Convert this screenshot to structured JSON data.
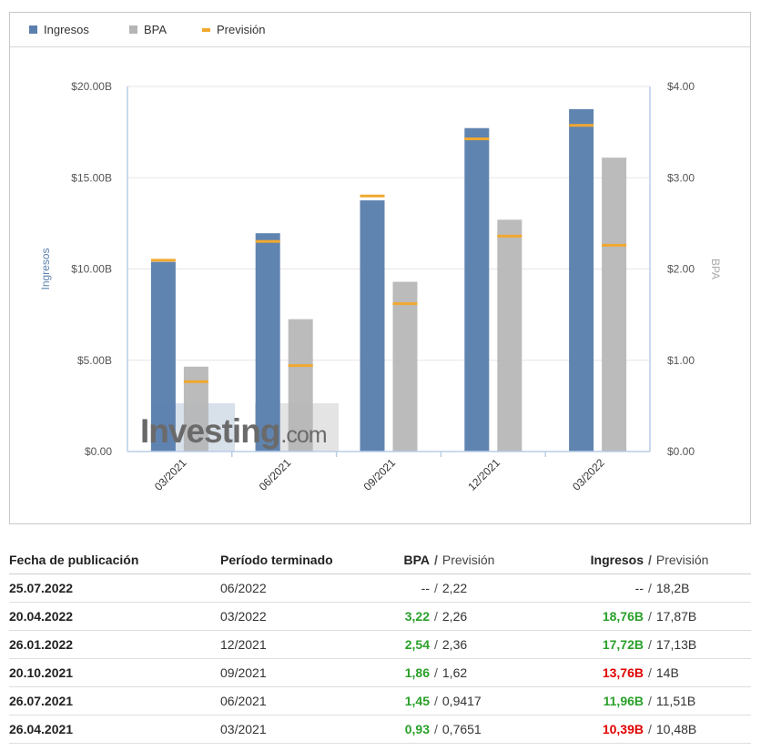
{
  "legend": {
    "ingresos": "Ingresos",
    "bpa": "BPA",
    "prevision": "Previsión"
  },
  "colors": {
    "ingresos": "#5b80ad",
    "bpa": "#b5b5b5",
    "prevision": "#f0a830",
    "positive": "#2aa02a",
    "negative": "#e00000"
  },
  "watermark": "Investing.com",
  "chart_data": {
    "type": "bar",
    "categories": [
      "03/2021",
      "06/2021",
      "09/2021",
      "12/2021",
      "03/2022"
    ],
    "series": [
      {
        "name": "Ingresos",
        "axis": "left",
        "values": [
          10.39,
          11.96,
          13.76,
          17.72,
          18.76
        ],
        "forecast": [
          10.48,
          11.51,
          14.0,
          17.13,
          17.87
        ]
      },
      {
        "name": "BPA",
        "axis": "right",
        "values": [
          0.93,
          1.45,
          1.86,
          2.54,
          3.22
        ],
        "forecast": [
          0.7651,
          0.9417,
          1.62,
          2.36,
          2.26
        ]
      }
    ],
    "y_left": {
      "label": "Ingresos",
      "range": [
        0,
        20
      ],
      "ticks": [
        "$0.00",
        "$5.00B",
        "$10.00B",
        "$15.00B",
        "$20.00B"
      ]
    },
    "y_right": {
      "label": "BPA",
      "range": [
        0,
        4
      ],
      "ticks": [
        "$0.00",
        "$1.00",
        "$2.00",
        "$3.00",
        "$4.00"
      ]
    },
    "grid": true,
    "legend_position": "top-left"
  },
  "table": {
    "headers": {
      "date": "Fecha de publicación",
      "period": "Período terminado",
      "bpa": "BPA",
      "bpa_forecast": "Previsión",
      "ingresos": "Ingresos",
      "ingresos_forecast": "Previsión",
      "separator": "/"
    },
    "rows": [
      {
        "date": "25.07.2022",
        "period": "06/2022",
        "bpa": "--",
        "bpa_forecast": "2,22",
        "ingresos": "--",
        "ingresos_forecast": "18,2B",
        "bpa_status": "none",
        "ingresos_status": "none"
      },
      {
        "date": "20.04.2022",
        "period": "03/2022",
        "bpa": "3,22",
        "bpa_forecast": "2,26",
        "ingresos": "18,76B",
        "ingresos_forecast": "17,87B",
        "bpa_status": "pos",
        "ingresos_status": "pos"
      },
      {
        "date": "26.01.2022",
        "period": "12/2021",
        "bpa": "2,54",
        "bpa_forecast": "2,36",
        "ingresos": "17,72B",
        "ingresos_forecast": "17,13B",
        "bpa_status": "pos",
        "ingresos_status": "pos"
      },
      {
        "date": "20.10.2021",
        "period": "09/2021",
        "bpa": "1,86",
        "bpa_forecast": "1,62",
        "ingresos": "13,76B",
        "ingresos_forecast": "14B",
        "bpa_status": "pos",
        "ingresos_status": "neg"
      },
      {
        "date": "26.07.2021",
        "period": "06/2021",
        "bpa": "1,45",
        "bpa_forecast": "0,9417",
        "ingresos": "11,96B",
        "ingresos_forecast": "11,51B",
        "bpa_status": "pos",
        "ingresos_status": "pos"
      },
      {
        "date": "26.04.2021",
        "period": "03/2021",
        "bpa": "0,93",
        "bpa_forecast": "0,7651",
        "ingresos": "10,39B",
        "ingresos_forecast": "10,48B",
        "bpa_status": "pos",
        "ingresos_status": "neg"
      }
    ]
  }
}
